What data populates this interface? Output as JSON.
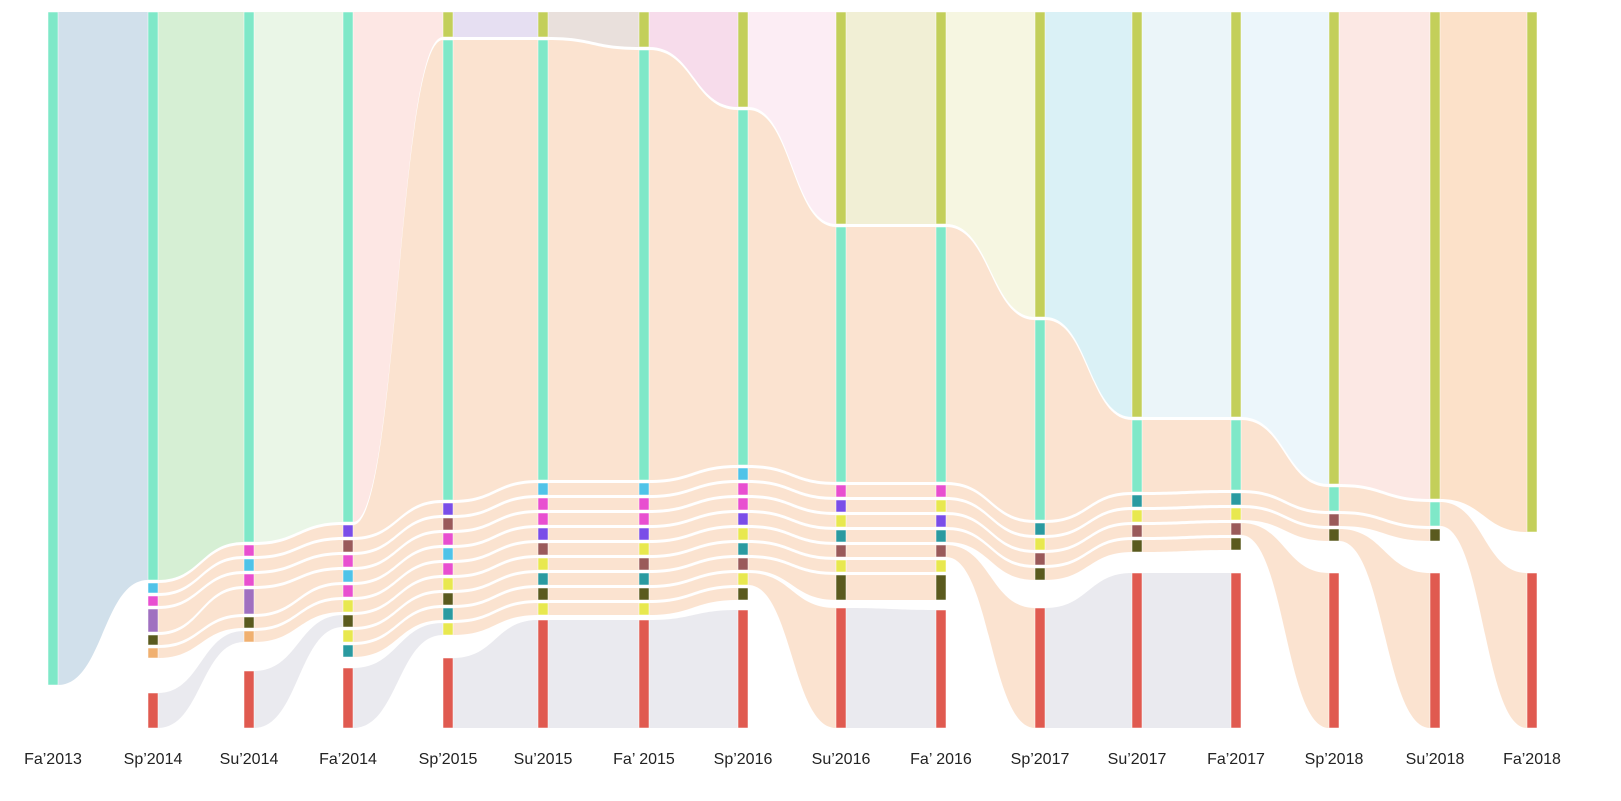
{
  "chart_data": {
    "type": "sankey",
    "categories": [
      "Fa’2013",
      "Sp’2014",
      "Su’2014",
      "Fa’2014",
      "Sp’2015",
      "Su’2015",
      "Fa’ 2015",
      "Sp’2016",
      "Su’2016",
      "Fa’ 2016",
      "Sp’2017",
      "Su’2017",
      "Fa’2017",
      "Sp’2018",
      "Su’2018",
      "Fa’2018"
    ],
    "link_colors": [
      "#c9dbe8",
      "#cfeccd",
      "#e6f5e3",
      "#fde3df",
      "#e2d9f0",
      "#e5dbd6",
      "#f6d6e8",
      "#fbeaf2",
      "#eeecce",
      "#f4f4dc",
      "#d4eef5",
      "#e8f3f8",
      "#e9f4fa",
      "#fbe4df",
      "#fbdcc0"
    ],
    "minor_link_color": "#f6b98a",
    "columns": [
      [
        [
          673,
          "#7fe8c8"
        ]
      ],
      [
        [
          568,
          "#7fe8c8"
        ],
        [
          10,
          "#4fc3e8"
        ],
        [
          10,
          "#e84fd0"
        ],
        [
          23,
          "#a070c0"
        ],
        [
          10,
          "#5a5a1e"
        ],
        [
          10,
          "#f0b070"
        ],
        [
          35,
          "#e05a50"
        ]
      ],
      [
        [
          530,
          "#7fe8c8"
        ],
        [
          11,
          "#e84fd0"
        ],
        [
          12,
          "#4fc3e8"
        ],
        [
          12,
          "#e84fd0"
        ],
        [
          25,
          "#a070c0"
        ],
        [
          11,
          "#5a5a1e"
        ],
        [
          11,
          "#f0b070"
        ],
        [
          57,
          "#e05a50"
        ]
      ],
      [
        [
          510,
          "#7fe8c8"
        ],
        [
          12,
          "#7a4de8"
        ],
        [
          12,
          "#9a5a5a"
        ],
        [
          12,
          "#e84fd0"
        ],
        [
          12,
          "#4fc3e8"
        ],
        [
          12,
          "#e84fd0"
        ],
        [
          12,
          "#e8e84f"
        ],
        [
          12,
          "#5a5a1e"
        ],
        [
          12,
          "#e8e84f"
        ],
        [
          12,
          "#2a9aa0"
        ],
        [
          60,
          "#e05a50"
        ]
      ],
      [
        [
          25,
          "#c3cf5a"
        ],
        [
          460,
          "#7fe8c8"
        ],
        [
          12,
          "#7a4de8"
        ],
        [
          12,
          "#9a5a5a"
        ],
        [
          12,
          "#e84fd0"
        ],
        [
          12,
          "#4fc3e8"
        ],
        [
          12,
          "#e84fd0"
        ],
        [
          12,
          "#e8e84f"
        ],
        [
          12,
          "#5a5a1e"
        ],
        [
          12,
          "#2a9aa0"
        ],
        [
          12,
          "#e8e84f"
        ],
        [
          70,
          "#e05a50"
        ]
      ],
      [
        [
          25,
          "#c3cf5a"
        ],
        [
          440,
          "#7fe8c8"
        ],
        [
          12,
          "#4fc3e8"
        ],
        [
          12,
          "#e84fd0"
        ],
        [
          12,
          "#e84fd0"
        ],
        [
          12,
          "#7a4de8"
        ],
        [
          12,
          "#9a5a5a"
        ],
        [
          12,
          "#e8e84f"
        ],
        [
          12,
          "#2a9aa0"
        ],
        [
          12,
          "#5a5a1e"
        ],
        [
          12,
          "#e8e84f"
        ],
        [
          108,
          "#e05a50"
        ]
      ],
      [
        [
          35,
          "#c3cf5a"
        ],
        [
          430,
          "#7fe8c8"
        ],
        [
          12,
          "#4fc3e8"
        ],
        [
          12,
          "#e84fd0"
        ],
        [
          12,
          "#e84fd0"
        ],
        [
          12,
          "#7a4de8"
        ],
        [
          12,
          "#e8e84f"
        ],
        [
          12,
          "#9a5a5a"
        ],
        [
          12,
          "#2a9aa0"
        ],
        [
          12,
          "#5a5a1e"
        ],
        [
          12,
          "#e8e84f"
        ],
        [
          108,
          "#e05a50"
        ]
      ],
      [
        [
          95,
          "#c3cf5a"
        ],
        [
          355,
          "#7fe8c8"
        ],
        [
          12,
          "#4fc3e8"
        ],
        [
          12,
          "#e84fd0"
        ],
        [
          12,
          "#e84fd0"
        ],
        [
          12,
          "#7a4de8"
        ],
        [
          12,
          "#e8e84f"
        ],
        [
          12,
          "#2a9aa0"
        ],
        [
          12,
          "#9a5a5a"
        ],
        [
          12,
          "#e8e84f"
        ],
        [
          12,
          "#5a5a1e"
        ],
        [
          118,
          "#e05a50"
        ]
      ],
      [
        [
          212,
          "#c3cf5a"
        ],
        [
          255,
          "#7fe8c8"
        ],
        [
          12,
          "#e84fd0"
        ],
        [
          12,
          "#7a4de8"
        ],
        [
          12,
          "#e8e84f"
        ],
        [
          12,
          "#2a9aa0"
        ],
        [
          12,
          "#9a5a5a"
        ],
        [
          12,
          "#e8e84f"
        ],
        [
          25,
          "#5a5a1e"
        ],
        [
          120,
          "#e05a50"
        ]
      ],
      [
        [
          212,
          "#c3cf5a"
        ],
        [
          255,
          "#7fe8c8"
        ],
        [
          12,
          "#e84fd0"
        ],
        [
          12,
          "#e8e84f"
        ],
        [
          12,
          "#7a4de8"
        ],
        [
          12,
          "#2a9aa0"
        ],
        [
          12,
          "#9a5a5a"
        ],
        [
          12,
          "#e8e84f"
        ],
        [
          25,
          "#5a5a1e"
        ],
        [
          118,
          "#e05a50"
        ]
      ],
      [
        [
          305,
          "#c3cf5a"
        ],
        [
          200,
          "#7fe8c8"
        ],
        [
          12,
          "#2a9aa0"
        ],
        [
          12,
          "#e8e84f"
        ],
        [
          12,
          "#9a5a5a"
        ],
        [
          12,
          "#5a5a1e"
        ],
        [
          120,
          "#e05a50"
        ]
      ],
      [
        [
          405,
          "#c3cf5a"
        ],
        [
          72,
          "#7fe8c8"
        ],
        [
          12,
          "#2a9aa0"
        ],
        [
          12,
          "#e8e84f"
        ],
        [
          12,
          "#9a5a5a"
        ],
        [
          12,
          "#5a5a1e"
        ],
        [
          155,
          "#e05a50"
        ]
      ],
      [
        [
          405,
          "#c3cf5a"
        ],
        [
          70,
          "#7fe8c8"
        ],
        [
          12,
          "#2a9aa0"
        ],
        [
          12,
          "#e8e84f"
        ],
        [
          12,
          "#9a5a5a"
        ],
        [
          12,
          "#5a5a1e"
        ],
        [
          155,
          "#e05a50"
        ]
      ],
      [
        [
          472,
          "#c3cf5a"
        ],
        [
          24,
          "#7fe8c8"
        ],
        [
          12,
          "#9a5a5a"
        ],
        [
          12,
          "#5a5a1e"
        ],
        [
          155,
          "#e05a50"
        ]
      ],
      [
        [
          487,
          "#c3cf5a"
        ],
        [
          24,
          "#7fe8c8"
        ],
        [
          12,
          "#5a5a1e"
        ],
        [
          155,
          "#e05a50"
        ]
      ],
      [
        [
          520,
          "#c3cf5a"
        ],
        [
          155,
          "#e05a50"
        ]
      ]
    ]
  }
}
